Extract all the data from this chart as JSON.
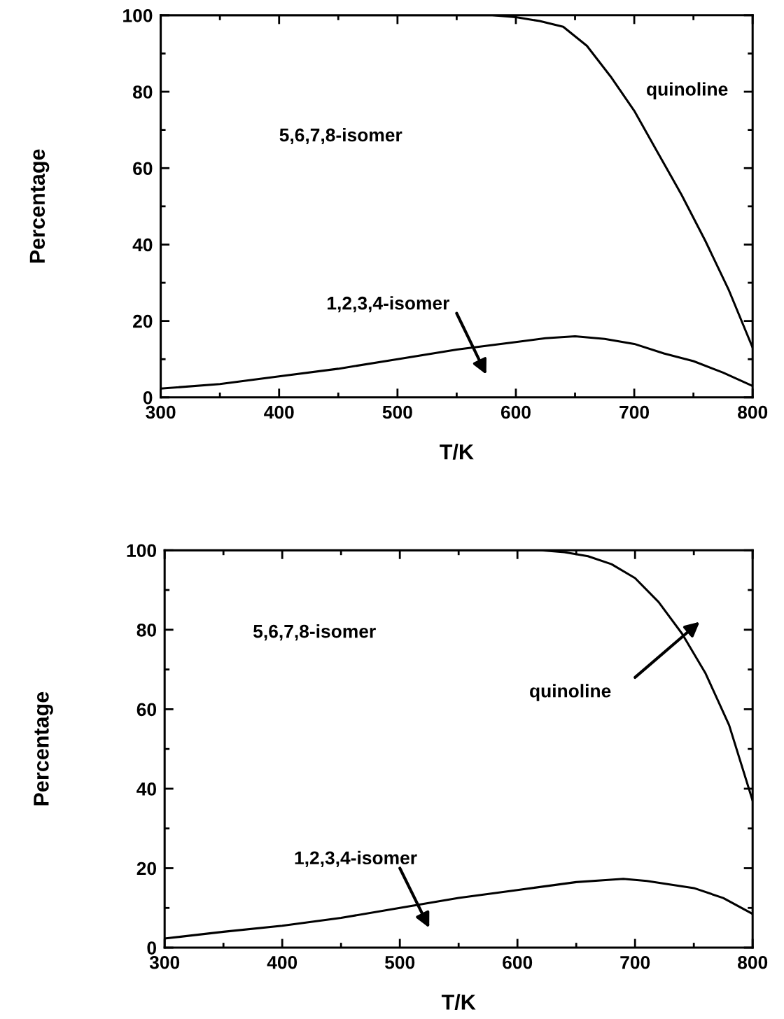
{
  "chart_data": [
    {
      "type": "line",
      "xlabel": "T/K",
      "ylabel": "Percentage",
      "xlim": [
        300,
        800
      ],
      "ylim": [
        0,
        100
      ],
      "xticks": [
        300,
        400,
        500,
        600,
        700,
        800
      ],
      "yticks": [
        0,
        20,
        40,
        60,
        80,
        100
      ],
      "grid": false,
      "marker": "none",
      "line_style": "solid",
      "series": [
        {
          "color": "#000000",
          "x": [
            300,
            400,
            500,
            580,
            600,
            620,
            640,
            660,
            680,
            700,
            720,
            740,
            760,
            780,
            800
          ],
          "values": [
            100,
            100,
            100,
            100,
            99.5,
            98.5,
            97,
            92,
            84,
            75,
            64,
            53,
            41,
            28,
            13
          ]
        },
        {
          "color": "#000000",
          "x": [
            300,
            350,
            400,
            450,
            500,
            550,
            600,
            625,
            650,
            675,
            700,
            725,
            750,
            775,
            800
          ],
          "values": [
            2.3,
            3.5,
            5.5,
            7.5,
            10,
            12.5,
            14.5,
            15.5,
            16,
            15.3,
            14,
            11.5,
            9.5,
            6.5,
            3
          ]
        }
      ],
      "annotations": [
        "5,6,7,8-isomer",
        "quinoline",
        "1,2,3,4-isomer"
      ]
    },
    {
      "type": "line",
      "xlabel": "T/K",
      "ylabel": "Percentage",
      "xlim": [
        300,
        800
      ],
      "ylim": [
        0,
        100
      ],
      "xticks": [
        300,
        400,
        500,
        600,
        700,
        800
      ],
      "yticks": [
        0,
        20,
        40,
        60,
        80,
        100
      ],
      "grid": false,
      "marker": "none",
      "line_style": "solid",
      "series": [
        {
          "color": "#000000",
          "x": [
            300,
            400,
            500,
            600,
            620,
            640,
            660,
            680,
            700,
            720,
            740,
            760,
            780,
            800
          ],
          "values": [
            100,
            100,
            100,
            100,
            100,
            99.5,
            98.5,
            96.5,
            93,
            87,
            79,
            69,
            56,
            37
          ]
        },
        {
          "color": "#000000",
          "x": [
            300,
            350,
            400,
            450,
            500,
            550,
            600,
            650,
            675,
            690,
            710,
            750,
            775,
            800
          ],
          "values": [
            2.3,
            4,
            5.5,
            7.5,
            10,
            12.5,
            14.5,
            16.5,
            17,
            17.3,
            16.8,
            15,
            12.5,
            8.5
          ]
        }
      ],
      "annotations": [
        "5,6,7,8-isomer",
        "quinoline",
        "1,2,3,4-isomer"
      ]
    }
  ]
}
